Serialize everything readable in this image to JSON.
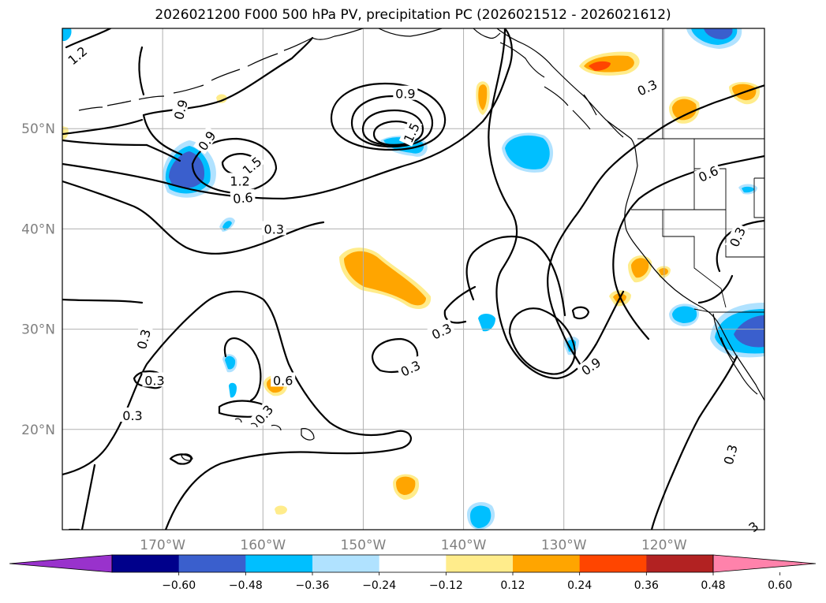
{
  "title": "2026021200 F000 500 hPa PV, precipitation PC (2026021512 - 2026021612)",
  "map": {
    "lon_range": [
      180,
      110
    ],
    "lat_range": [
      10,
      60
    ],
    "lat_labels": [
      {
        "lat": 50,
        "text": "50°N"
      },
      {
        "lat": 40,
        "text": "40°N"
      },
      {
        "lat": 30,
        "text": "30°N"
      },
      {
        "lat": 20,
        "text": "20°N"
      }
    ],
    "lon_labels": [
      {
        "lon": 170,
        "text": "170°W"
      },
      {
        "lon": 160,
        "text": "160°W"
      },
      {
        "lon": 150,
        "text": "150°W"
      },
      {
        "lon": 140,
        "text": "140°W"
      },
      {
        "lon": 130,
        "text": "130°W"
      },
      {
        "lon": 120,
        "text": "120°W"
      }
    ],
    "grid": true
  },
  "contour_labels": [
    {
      "text": "1.2",
      "lon": 178.5,
      "lat": 57.3,
      "rot": -40
    },
    {
      "text": "0.9",
      "lon": 168.2,
      "lat": 51.9,
      "rot": -75
    },
    {
      "text": "0.9",
      "lon": 165.6,
      "lat": 48.8,
      "rot": -55
    },
    {
      "text": "1.5",
      "lon": 161.1,
      "lat": 46.3,
      "rot": -40
    },
    {
      "text": "1.2",
      "lon": 162.3,
      "lat": 44.8,
      "rot": 0
    },
    {
      "text": "0.6",
      "lon": 162.0,
      "lat": 43.1,
      "rot": -5
    },
    {
      "text": "0.3",
      "lon": 158.9,
      "lat": 40.0,
      "rot": 0
    },
    {
      "text": "0.9",
      "lon": 145.8,
      "lat": 53.5,
      "rot": 0
    },
    {
      "text": "1.5",
      "lon": 145.2,
      "lat": 49.6,
      "rot": -65
    },
    {
      "text": "0.3",
      "lon": 121.7,
      "lat": 54.1,
      "rot": -25
    },
    {
      "text": "0.6",
      "lon": 115.6,
      "lat": 45.5,
      "rot": -25
    },
    {
      "text": "0.3",
      "lon": 112.7,
      "lat": 39.2,
      "rot": -65
    },
    {
      "text": "0.3",
      "lon": 171.9,
      "lat": 29.0,
      "rot": -75
    },
    {
      "text": "0.3",
      "lon": 170.8,
      "lat": 24.9,
      "rot": 0
    },
    {
      "text": "0.3",
      "lon": 173.0,
      "lat": 21.4,
      "rot": 0
    },
    {
      "text": "0.6",
      "lon": 158.0,
      "lat": 24.9,
      "rot": 0
    },
    {
      "text": "0.3",
      "lon": 159.9,
      "lat": 21.5,
      "rot": -50
    },
    {
      "text": "0.3",
      "lon": 142.2,
      "lat": 29.8,
      "rot": -25
    },
    {
      "text": "0.3",
      "lon": 145.3,
      "lat": 26.1,
      "rot": -25
    },
    {
      "text": "0.9",
      "lon": 127.3,
      "lat": 26.3,
      "rot": -35
    },
    {
      "text": "0.3",
      "lon": 113.4,
      "lat": 17.5,
      "rot": -75
    },
    {
      "text": "3",
      "lon": 111.1,
      "lat": 10.3,
      "rot": -40
    }
  ],
  "colorbar": {
    "colors": [
      "#9932cc",
      "#00008b",
      "#3a5fcd",
      "#00bfff",
      "#b0e2ff",
      "#ffffff",
      "#ffec8b",
      "#ffa500",
      "#ff4500",
      "#b22222",
      "#ff82ab"
    ],
    "ticks": [
      "−0.60",
      "−0.48",
      "−0.36",
      "−0.24",
      "−0.12",
      "0.12",
      "0.24",
      "0.36",
      "0.48",
      "0.60"
    ]
  }
}
